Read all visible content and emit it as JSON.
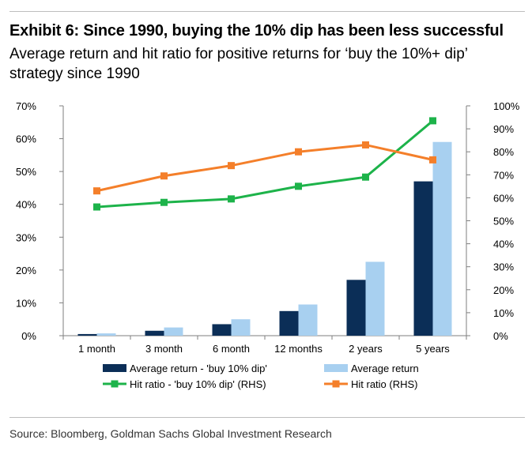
{
  "title": "Exhibit 6: Since 1990, buying the 10% dip has been less successful",
  "subtitle": "Average return and hit ratio for positive returns for ‘buy the 10%+ dip’ strategy since 1990",
  "source": "Source: Bloomberg, Goldman Sachs Global Investment Research",
  "chart_data": {
    "type": "bar",
    "categories": [
      "1 month",
      "3 month",
      "6 month",
      "12 months",
      "2 years",
      "5 years"
    ],
    "series": [
      {
        "name": "Average return - 'buy 10% dip'",
        "type": "bar",
        "axis": "left",
        "color": "#0b2e57",
        "values": [
          0.5,
          1.5,
          3.5,
          7.5,
          17,
          47
        ]
      },
      {
        "name": "Average return",
        "type": "bar",
        "axis": "left",
        "color": "#a8d0f0",
        "values": [
          0.7,
          2.5,
          5,
          9.5,
          22.5,
          59
        ]
      },
      {
        "name": "Hit ratio - 'buy 10% dip' (RHS)",
        "type": "line",
        "axis": "right",
        "color": "#1db34a",
        "values": [
          56,
          58,
          59.5,
          65,
          69,
          93.5
        ]
      },
      {
        "name": "Hit ratio (RHS)",
        "type": "line",
        "axis": "right",
        "color": "#f47f2a",
        "values": [
          63,
          69.5,
          74,
          80,
          83,
          76.5
        ]
      }
    ],
    "y_left": {
      "min": 0,
      "max": 70,
      "step": 10,
      "tick_labels": [
        "0%",
        "10%",
        "20%",
        "30%",
        "40%",
        "50%",
        "60%",
        "70%"
      ]
    },
    "y_right": {
      "min": 0,
      "max": 100,
      "step": 10,
      "tick_labels": [
        "0%",
        "10%",
        "20%",
        "30%",
        "40%",
        "50%",
        "60%",
        "70%",
        "80%",
        "90%",
        "100%"
      ]
    },
    "grid": false,
    "legend_position": "bottom"
  }
}
